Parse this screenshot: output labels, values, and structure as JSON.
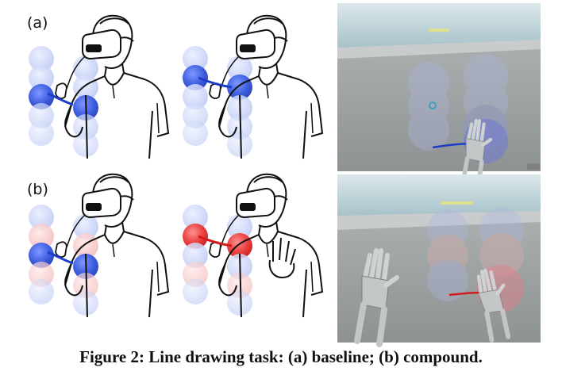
{
  "figure": {
    "label_a": "(a)",
    "label_b": "(b)",
    "caption": "Figure 2: Line drawing task: (a) baseline; (b) compound.",
    "colors": {
      "blue_sphere": "#3f64e6",
      "blue_sphere_faint": "#c9d3f5",
      "red_sphere": "#ef4d4d",
      "red_sphere_faint": "#f6c8c8",
      "line_blue": "#1f3cc8",
      "line_red": "#d31b1b",
      "vr_sky": "#c9dde4",
      "vr_floor": "#9aa0a0"
    },
    "icons": [
      "person-vr-headset-sketch",
      "vr-hand-model",
      "vr-screenshot"
    ]
  }
}
